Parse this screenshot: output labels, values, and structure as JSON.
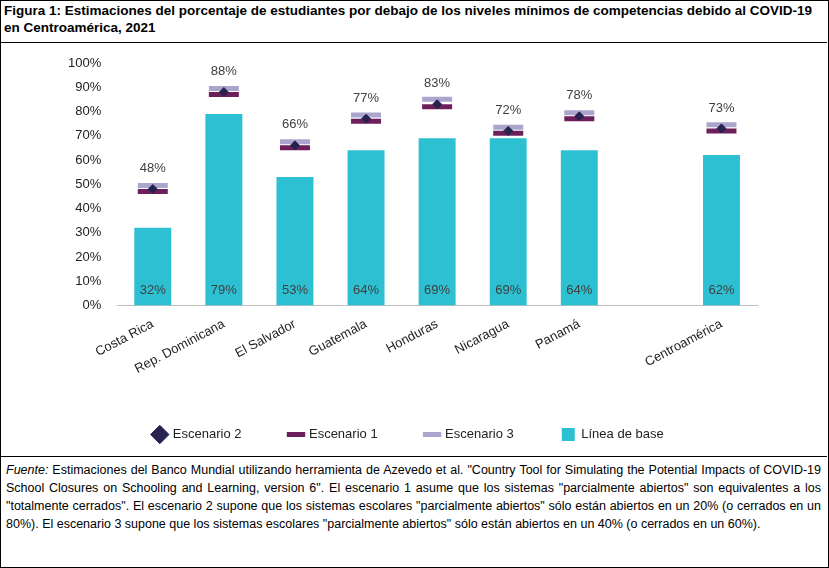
{
  "chart_data": {
    "type": "bar",
    "title": "Figura 1: Estimaciones del porcentaje de estudiantes por debajo de los niveles mínimos de competencias debido al COVID-19 en Centroamérica, 2021",
    "annotations": [
      "Fuente: Estimaciones del Banco Mundial utilizando herramienta de Azevedo et al. \"Country Tool for Simulating the Potential Impacts of COVID-19 School Closures on Schooling and Learning, version 6\". El escenario 1 asume que los sistemas \"parcialmente abiertos\" son equivalentes a los \"totalmente cerrados\". El escenario 2 supone que los sistemas escolares \"parcialmente abiertos\" sólo están abiertos en un 20% (o cerrados en un 80%). El escenario 3 supone que los sistemas escolares \"parcialmente abiertos\" sólo están abiertos en un 40% (o cerrados en un 60%)."
    ],
    "categories": [
      "Costa Rica",
      "Rep. Dominicana",
      "El Salvador",
      "Guatemala",
      "Honduras",
      "Nicaragua",
      "Panamá",
      null,
      "Centroamérica"
    ],
    "series": [
      {
        "name": "Línea de base",
        "type": "bar",
        "color": "#2cc0d2",
        "values": [
          32,
          79,
          53,
          64,
          69,
          69,
          64,
          null,
          62
        ],
        "data_labels": true,
        "value_labels": [
          "32%",
          "79%",
          "53%",
          "64%",
          "69%",
          "69%",
          "64%",
          null,
          "62%"
        ]
      },
      {
        "name": "Escenario 1",
        "type": "scatter",
        "marker": "dash",
        "color": "#6d1f5c",
        "values": [
          47,
          87,
          65,
          76,
          82,
          71,
          77,
          null,
          72
        ]
      },
      {
        "name": "Escenario 2",
        "type": "scatter",
        "marker": "diamond",
        "color": "#262350",
        "values": [
          48,
          88,
          66,
          77,
          83,
          72,
          78,
          null,
          73
        ],
        "data_labels": true,
        "value_labels": [
          "48%",
          "88%",
          "66%",
          "77%",
          "83%",
          "72%",
          "78%",
          null,
          "73%"
        ]
      },
      {
        "name": "Escenario 3",
        "type": "scatter",
        "marker": "dash",
        "color": "#aaa5cd",
        "values": [
          49.5,
          89.5,
          67.5,
          78.5,
          85,
          73.5,
          79.5,
          null,
          74.5
        ]
      }
    ],
    "ylim": [
      0,
      100
    ],
    "yticks": [
      {
        "value": 0,
        "label": "0%"
      },
      {
        "value": 10,
        "label": "10%"
      },
      {
        "value": 20,
        "label": "20%"
      },
      {
        "value": 30,
        "label": "30%"
      },
      {
        "value": 40,
        "label": "40%"
      },
      {
        "value": 50,
        "label": "50%"
      },
      {
        "value": 60,
        "label": "60%"
      },
      {
        "value": 70,
        "label": "70%"
      },
      {
        "value": 80,
        "label": "80%"
      },
      {
        "value": 90,
        "label": "90%"
      },
      {
        "value": 100,
        "label": "100%"
      }
    ],
    "grid": false,
    "legend": "bottom"
  }
}
